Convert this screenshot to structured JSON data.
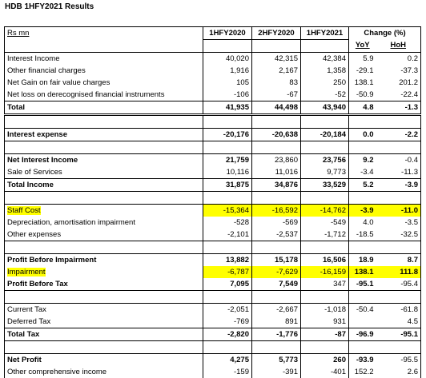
{
  "title": "HDB 1HFY2021 Results",
  "header": {
    "unit": "Rs mn",
    "cols": [
      "1HFY2020",
      "2HFY2020",
      "1HFY2021"
    ],
    "change": "Change (%)",
    "yoy": "YoY",
    "hoh": "HoH"
  },
  "rows": [
    {
      "label": "Interest Income",
      "v": [
        "40,020",
        "42,315",
        "42,384",
        "5.9",
        "0.2"
      ]
    },
    {
      "label": "Other financial charges",
      "v": [
        "1,916",
        "2,167",
        "1,358",
        "-29.1",
        "-37.3"
      ]
    },
    {
      "label": "Net Gain on fair value charges",
      "v": [
        "105",
        "83",
        "250",
        "138.1",
        "201.2"
      ]
    },
    {
      "label": "Net loss on derecognised financial instruments",
      "v": [
        "-106",
        "-67",
        "-52",
        "-50.9",
        "-22.4"
      ]
    },
    {
      "label": "Total",
      "v": [
        "41,935",
        "44,498",
        "43,940",
        "4.8",
        "-1.3"
      ]
    },
    {
      "label": "Interest expense",
      "v": [
        "-20,176",
        "-20,638",
        "-20,184",
        "0.0",
        "-2.2"
      ]
    },
    {
      "label": "Net Interest Income",
      "v": [
        "21,759",
        "23,860",
        "23,756",
        "9.2",
        "-0.4"
      ]
    },
    {
      "label": "Sale of Services",
      "v": [
        "10,116",
        "11,016",
        "9,773",
        "-3.4",
        "-11.3"
      ]
    },
    {
      "label": "Total Income",
      "v": [
        "31,875",
        "34,876",
        "33,529",
        "5.2",
        "-3.9"
      ]
    },
    {
      "label": "Staff Cost",
      "v": [
        "-15,364",
        "-16,592",
        "-14,762",
        "-3.9",
        "-11.0"
      ]
    },
    {
      "label": "Depreciation, amortisation impairment",
      "v": [
        "-528",
        "-569",
        "-549",
        "4.0",
        "-3.5"
      ]
    },
    {
      "label": "Other expenses",
      "v": [
        "-2,101",
        "-2,537",
        "-1,712",
        "-18.5",
        "-32.5"
      ]
    },
    {
      "label": "Profit Before Impairment",
      "v": [
        "13,882",
        "15,178",
        "16,506",
        "18.9",
        "8.7"
      ]
    },
    {
      "label": "Impairment",
      "v": [
        "-6,787",
        "-7,629",
        "-16,159",
        "138.1",
        "111.8"
      ]
    },
    {
      "label": "Profit Before Tax",
      "v": [
        "7,095",
        "7,549",
        "347",
        "-95.1",
        "-95.4"
      ]
    },
    {
      "label": "Current Tax",
      "v": [
        "-2,051",
        "-2,667",
        "-1,018",
        "-50.4",
        "-61.8"
      ]
    },
    {
      "label": "Deferred Tax",
      "v": [
        "-769",
        "891",
        "931",
        "",
        "4.5"
      ]
    },
    {
      "label": "Total Tax",
      "v": [
        "-2,820",
        "-1,776",
        "-87",
        "-96.9",
        "-95.1"
      ]
    },
    {
      "label": "Net Profit",
      "v": [
        "4,275",
        "5,773",
        "260",
        "-93.9",
        "-95.5"
      ]
    },
    {
      "label": "Other comprehensive income",
      "v": [
        "-159",
        "-391",
        "-401",
        "152.2",
        "2.6"
      ]
    }
  ]
}
